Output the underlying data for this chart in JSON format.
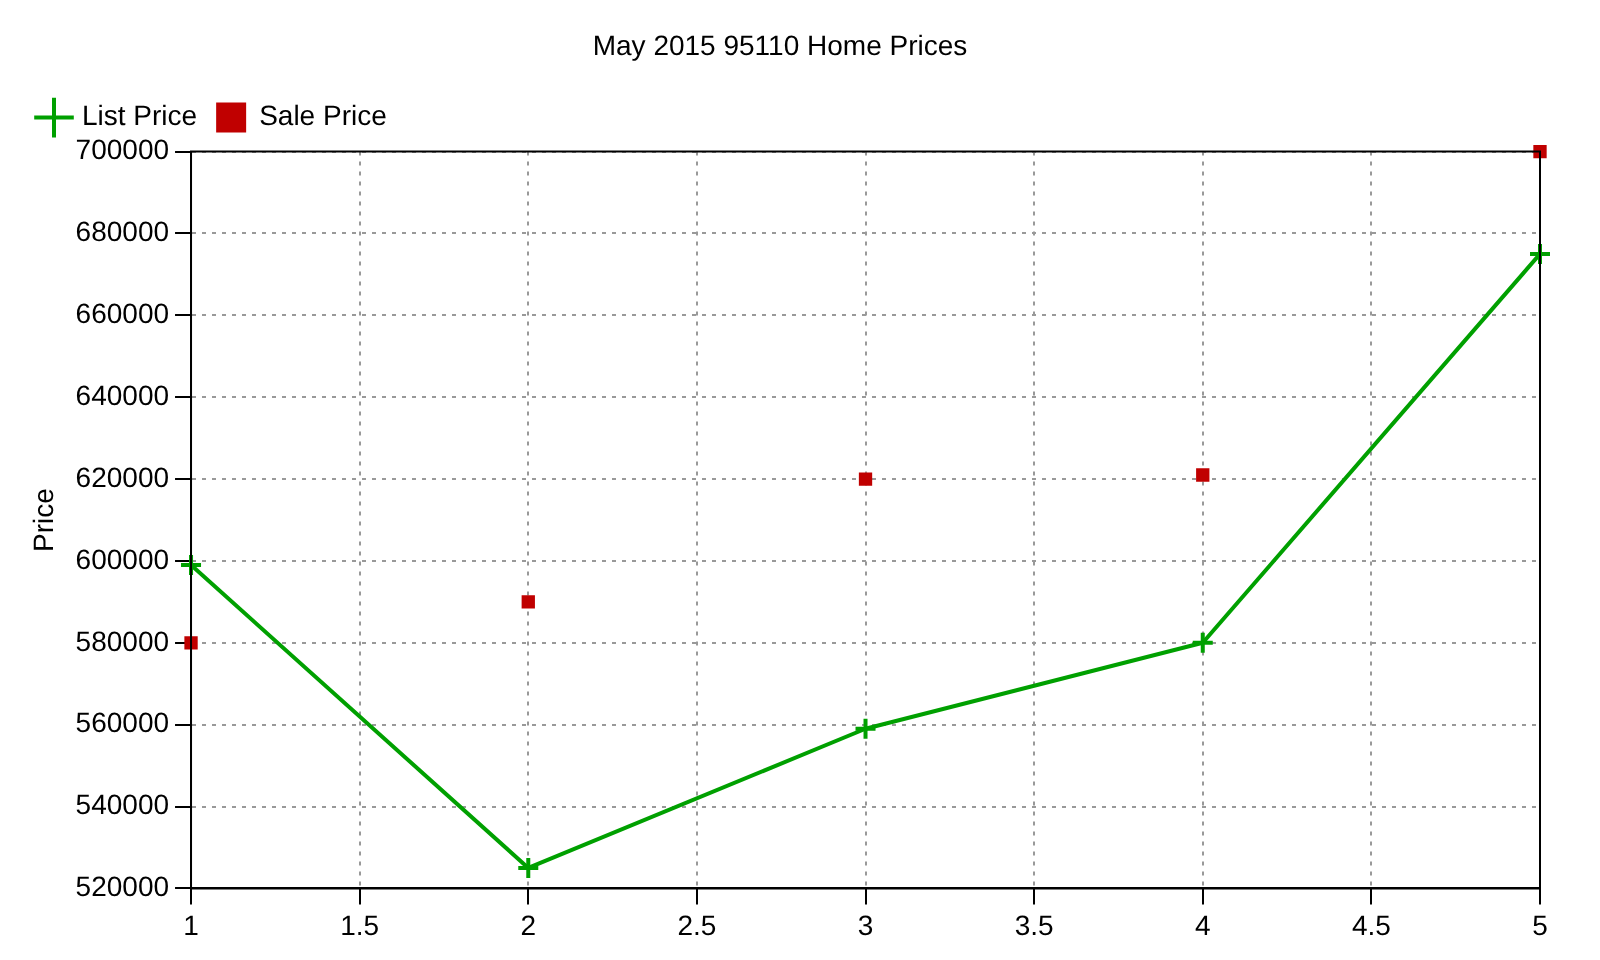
{
  "chart_data": {
    "type": "line",
    "title": "May 2015 95110 Home Prices",
    "ylabel": "Price",
    "x": [
      1,
      2,
      3,
      4,
      5
    ],
    "series": [
      {
        "name": "List Price",
        "color": "#00a000",
        "marker": "cross",
        "values": [
          599000,
          525000,
          559000,
          580000,
          675000
        ]
      },
      {
        "name": "Sale Price",
        "type": "scatter",
        "color": "#c00000",
        "marker": "square",
        "values": [
          580000,
          590000,
          620000,
          621000,
          700000
        ]
      }
    ],
    "xlim": [
      1,
      5
    ],
    "xticks": [
      1,
      1.5,
      2,
      2.5,
      3,
      3.5,
      4,
      4.5,
      5
    ],
    "ylim": [
      520000,
      700000
    ],
    "yticks": [
      520000,
      540000,
      560000,
      580000,
      600000,
      620000,
      640000,
      660000,
      680000,
      700000
    ],
    "grid": true,
    "legend": "top left"
  }
}
